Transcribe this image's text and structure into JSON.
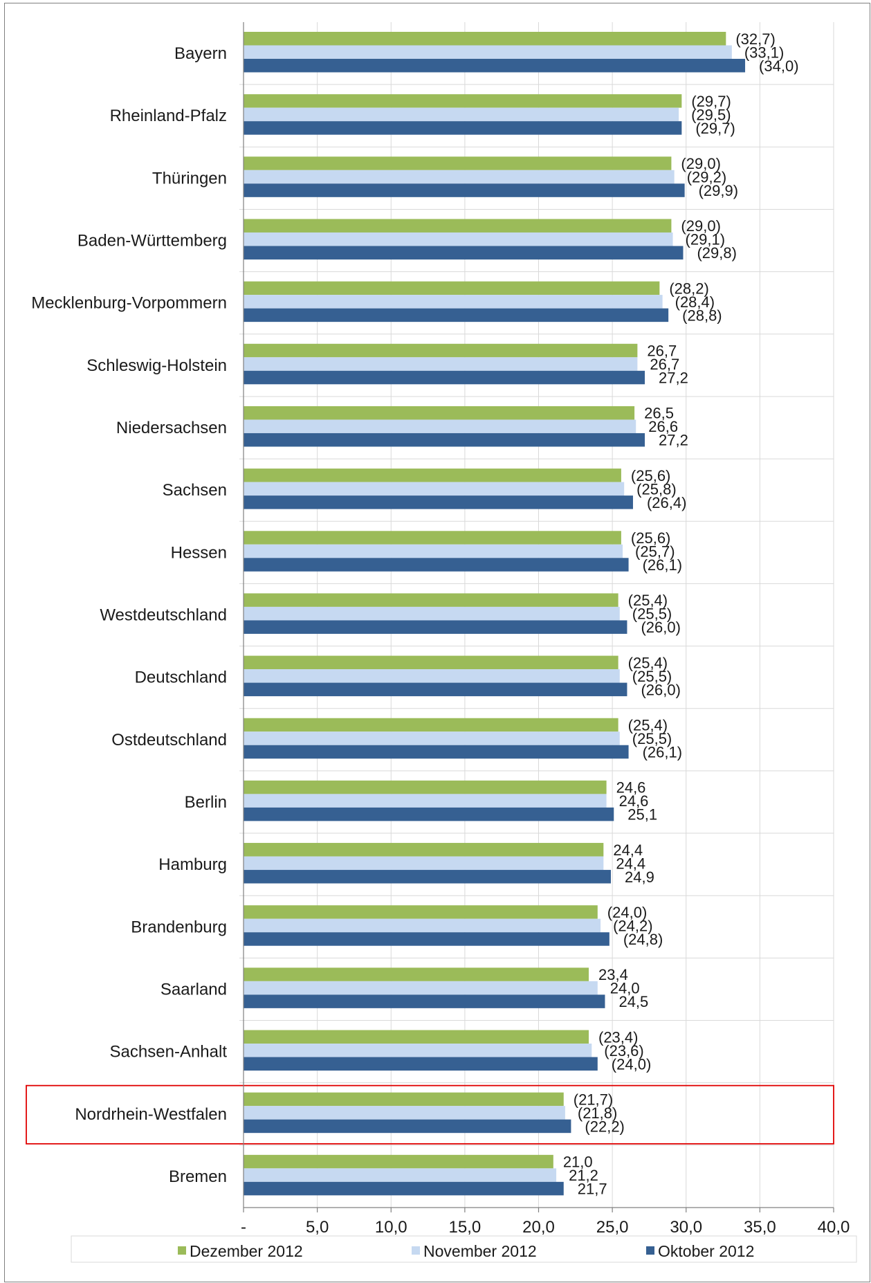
{
  "colors": {
    "dezember": "#9bbb59",
    "november": "#c6d9f1",
    "oktober": "#366092",
    "grid": "#d9d9d9",
    "axis": "#808080",
    "highlight": "#e00000"
  },
  "chart_data": {
    "type": "bar",
    "orientation": "horizontal",
    "title": "",
    "xlabel": "",
    "ylabel": "",
    "xlim": [
      0,
      40
    ],
    "x_ticks": [
      "-",
      "5,0",
      "10,0",
      "15,0",
      "20,0",
      "25,0",
      "30,0",
      "35,0",
      "40,0"
    ],
    "grid": true,
    "legend_position": "bottom",
    "highlighted_category": "Nordrhein-Westfalen",
    "categories": [
      "Bayern",
      "Rheinland-Pfalz",
      "Thüringen",
      "Baden-Württemberg",
      "Mecklenburg-Vorpommern",
      "Schleswig-Holstein",
      "Niedersachsen",
      "Sachsen",
      "Hessen",
      "Westdeutschland",
      "Deutschland",
      "Ostdeutschland",
      "Berlin",
      "Hamburg",
      "Brandenburg",
      "Saarland",
      "Sachsen-Anhalt",
      "Nordrhein-Westfalen",
      "Bremen"
    ],
    "series": [
      {
        "name": "Dezember 2012",
        "color": "#9bbb59",
        "values": [
          32.7,
          29.7,
          29.0,
          29.0,
          28.2,
          26.7,
          26.5,
          25.6,
          25.6,
          25.4,
          25.4,
          25.4,
          24.6,
          24.4,
          24.0,
          23.4,
          23.4,
          21.7,
          21.0
        ],
        "labels": [
          "(32,7)",
          "(29,7)",
          "(29,0)",
          "(29,0)",
          "(28,2)",
          "26,7",
          "26,5",
          "(25,6)",
          "(25,6)",
          "(25,4)",
          "(25,4)",
          "(25,4)",
          "24,6",
          "24,4",
          "(24,0)",
          "23,4",
          "(23,4)",
          "(21,7)",
          "21,0"
        ]
      },
      {
        "name": "November 2012",
        "color": "#c6d9f1",
        "values": [
          33.1,
          29.5,
          29.2,
          29.1,
          28.4,
          26.7,
          26.6,
          25.8,
          25.7,
          25.5,
          25.5,
          25.5,
          24.6,
          24.4,
          24.2,
          24.0,
          23.6,
          21.8,
          21.2
        ],
        "labels": [
          "(33,1)",
          "(29,5)",
          "(29,2)",
          "(29,1)",
          "(28,4)",
          "26,7",
          "26,6",
          "(25,8)",
          "(25,7)",
          "(25,5)",
          "(25,5)",
          "(25,5)",
          "24,6",
          "24,4",
          "(24,2)",
          "24,0",
          "(23,6)",
          "(21,8)",
          "21,2"
        ]
      },
      {
        "name": "Oktober 2012",
        "color": "#366092",
        "values": [
          34.0,
          29.7,
          29.9,
          29.8,
          28.8,
          27.2,
          27.2,
          26.4,
          26.1,
          26.0,
          26.0,
          26.1,
          25.1,
          24.9,
          24.8,
          24.5,
          24.0,
          22.2,
          21.7
        ],
        "labels": [
          "(34,0)",
          "(29,7)",
          "(29,9)",
          "(29,8)",
          "(28,8)",
          "27,2",
          "27,2",
          "(26,4)",
          "(26,1)",
          "(26,0)",
          "(26,0)",
          "(26,1)",
          "25,1",
          "24,9",
          "(24,8)",
          "24,5",
          "(24,0)",
          "(22,2)",
          "21,7"
        ]
      }
    ]
  }
}
